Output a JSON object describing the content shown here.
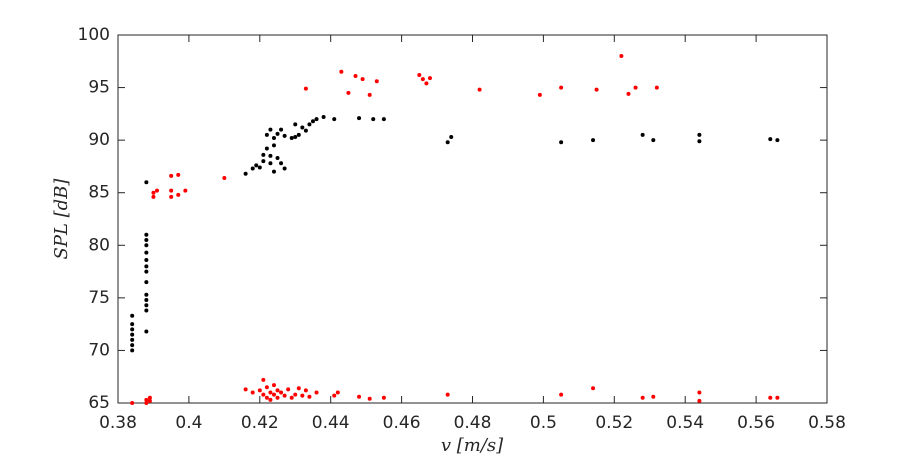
{
  "chart_data": {
    "type": "scatter",
    "xlabel": "v [m/s]",
    "ylabel": "SPL [dB]",
    "xlim": [
      0.38,
      0.58
    ],
    "xticks": [
      0.38,
      0.4,
      0.42,
      0.44,
      0.46,
      0.48,
      0.5,
      0.52,
      0.54,
      0.56,
      0.58
    ],
    "ylim": [
      65,
      100
    ],
    "yticks": [
      65,
      70,
      75,
      80,
      85,
      90,
      95,
      100
    ],
    "series": [
      {
        "color": "#000000",
        "x": [
          0.384,
          0.384,
          0.384,
          0.384,
          0.384,
          0.384,
          0.384,
          0.388,
          0.388,
          0.388,
          0.388,
          0.388,
          0.388,
          0.388,
          0.388,
          0.388,
          0.388,
          0.388,
          0.388,
          0.388,
          0.388,
          0.416,
          0.418,
          0.419,
          0.42,
          0.421,
          0.421,
          0.422,
          0.422,
          0.423,
          0.423,
          0.423,
          0.424,
          0.424,
          0.424,
          0.425,
          0.425,
          0.426,
          0.426,
          0.427,
          0.427,
          0.429,
          0.43,
          0.43,
          0.431,
          0.432,
          0.433,
          0.434,
          0.435,
          0.436,
          0.438,
          0.441,
          0.448,
          0.452,
          0.455,
          0.473,
          0.474,
          0.505,
          0.514,
          0.528,
          0.531,
          0.544,
          0.544,
          0.564,
          0.566
        ],
        "values": [
          70.0,
          70.5,
          71.0,
          71.5,
          72.0,
          72.5,
          73.3,
          71.8,
          73.8,
          74.3,
          74.8,
          75.3,
          76.5,
          77.5,
          78.0,
          78.6,
          79.3,
          80.0,
          80.5,
          81.0,
          86.0,
          86.8,
          87.3,
          87.6,
          87.4,
          88.0,
          88.6,
          89.2,
          90.5,
          87.8,
          88.5,
          91.0,
          89.5,
          90.2,
          87.0,
          88.3,
          90.6,
          87.8,
          91.0,
          90.4,
          87.3,
          90.2,
          91.5,
          90.3,
          90.5,
          91.2,
          90.9,
          91.5,
          91.8,
          92.0,
          92.2,
          92.0,
          92.1,
          92.0,
          92.0,
          89.8,
          90.3,
          89.8,
          90.0,
          90.5,
          90.0,
          89.9,
          90.5,
          90.1,
          90.0
        ]
      },
      {
        "color": "#ff0000",
        "x": [
          0.39,
          0.391,
          0.39,
          0.395,
          0.395,
          0.395,
          0.397,
          0.397,
          0.399,
          0.41,
          0.433,
          0.443,
          0.445,
          0.447,
          0.449,
          0.451,
          0.453,
          0.465,
          0.466,
          0.467,
          0.468,
          0.482,
          0.499,
          0.505,
          0.515,
          0.522,
          0.524,
          0.526,
          0.532,
          0.384,
          0.388,
          0.388,
          0.389,
          0.389,
          0.416,
          0.418,
          0.42,
          0.421,
          0.421,
          0.422,
          0.422,
          0.423,
          0.423,
          0.424,
          0.424,
          0.425,
          0.425,
          0.426,
          0.427,
          0.428,
          0.429,
          0.43,
          0.431,
          0.432,
          0.433,
          0.434,
          0.436,
          0.441,
          0.442,
          0.448,
          0.451,
          0.455,
          0.473,
          0.505,
          0.514,
          0.528,
          0.531,
          0.544,
          0.544,
          0.564,
          0.566
        ],
        "values": [
          85.0,
          85.2,
          84.6,
          86.6,
          85.2,
          84.6,
          86.7,
          84.8,
          85.2,
          86.4,
          94.9,
          96.5,
          94.5,
          96.1,
          95.8,
          94.3,
          95.6,
          96.2,
          95.8,
          95.4,
          95.9,
          94.8,
          94.3,
          95.0,
          94.8,
          98.0,
          94.4,
          95.0,
          95.0,
          65.0,
          65.0,
          65.3,
          65.5,
          65.2,
          66.3,
          66.0,
          66.2,
          65.8,
          67.2,
          66.5,
          65.5,
          66.0,
          65.3,
          66.7,
          65.8,
          66.2,
          65.5,
          66.0,
          65.7,
          66.3,
          65.5,
          65.8,
          66.4,
          65.7,
          66.2,
          65.6,
          66.0,
          65.7,
          66.0,
          65.6,
          65.4,
          65.5,
          65.8,
          65.8,
          66.4,
          65.5,
          65.6,
          65.2,
          66.0,
          65.5,
          65.5
        ]
      }
    ]
  }
}
